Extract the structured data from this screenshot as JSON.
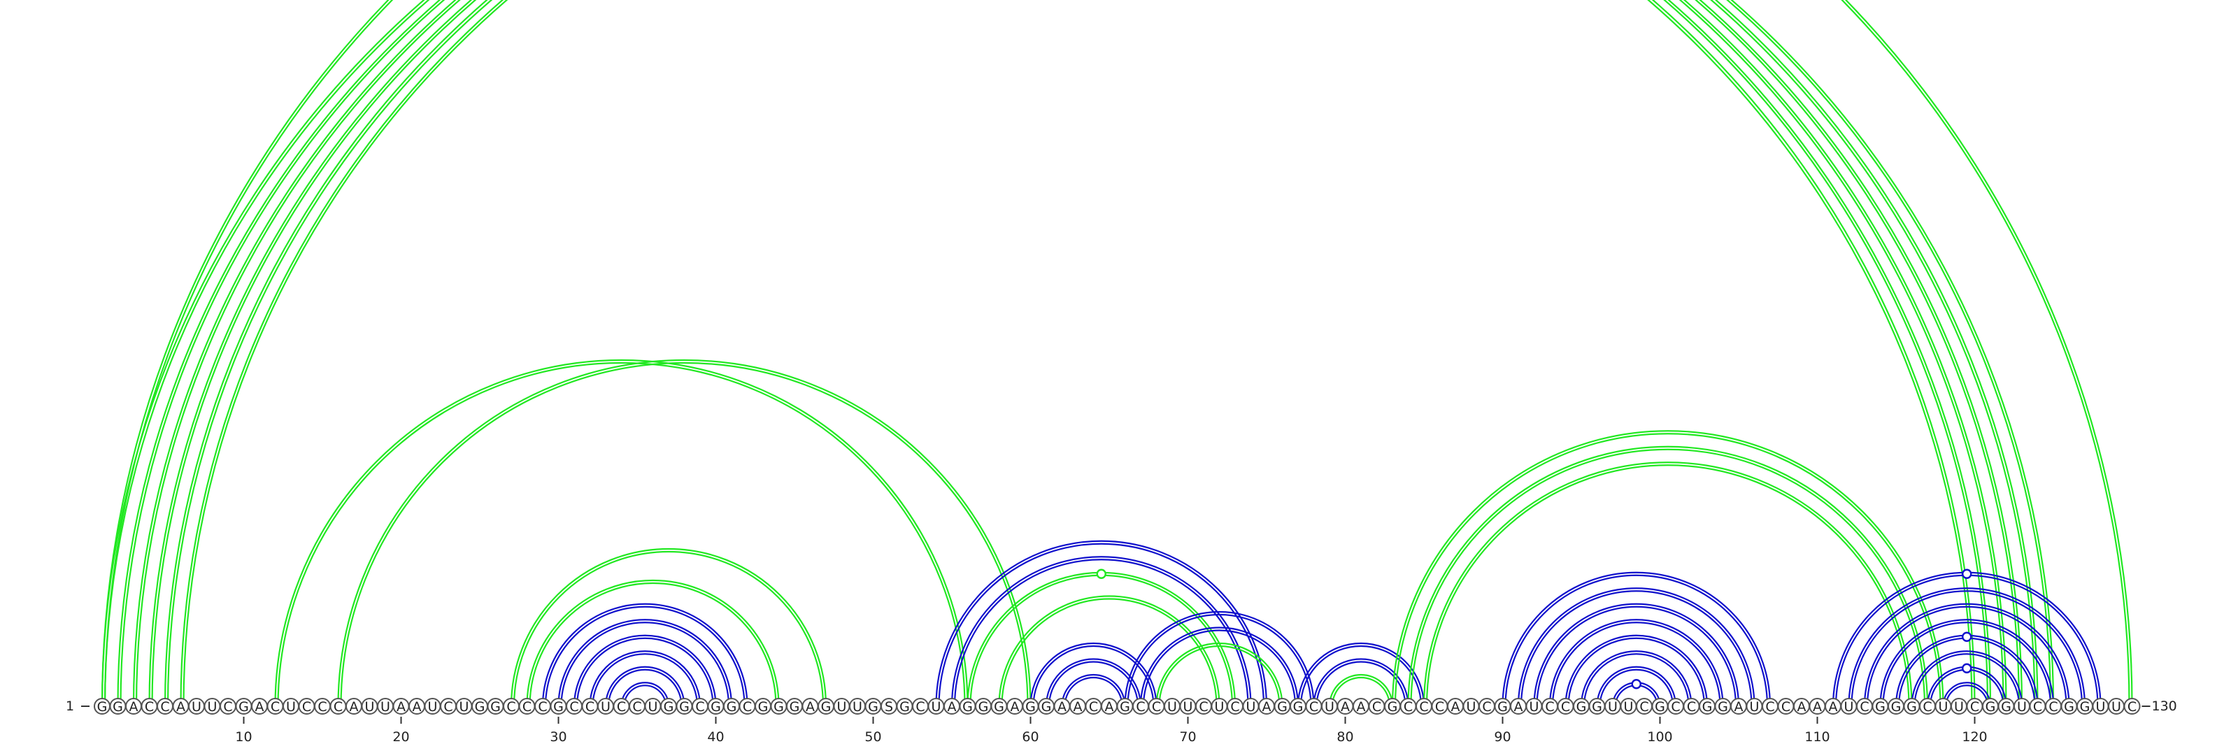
{
  "sequence": "GGACCAUUCGACUCCCAUUAAUCUGGCCCGCCUCCUGGCGGCGGGAGUUGSGCUAGGGAGGAACAGCCUUCUCUAGGCUAACGCCCAUCGAUCCGGUUCGCCGGAUCCAAAUCGGGCUUCGGUCCGGUUC",
  "start_label": "1",
  "end_label": "130",
  "ticks": [
    10,
    20,
    30,
    40,
    50,
    60,
    70,
    80,
    90,
    100,
    110,
    120
  ],
  "colors": {
    "green": "#22e822",
    "blue": "#1111cc"
  },
  "arcs": [
    {
      "i": 1,
      "j": 120,
      "color": "green",
      "mark": false
    },
    {
      "i": 2,
      "j": 121,
      "color": "green",
      "mark": false
    },
    {
      "i": 3,
      "j": 122,
      "color": "green",
      "mark": false
    },
    {
      "i": 4,
      "j": 123,
      "color": "green",
      "mark": false
    },
    {
      "i": 5,
      "j": 124,
      "color": "green",
      "mark": false
    },
    {
      "i": 6,
      "j": 125,
      "color": "green",
      "mark": false
    },
    {
      "i": 1,
      "j": 130,
      "color": "green",
      "mark": true
    },
    {
      "i": 12,
      "j": 56,
      "color": "green",
      "mark": false
    },
    {
      "i": 16,
      "j": 60,
      "color": "green",
      "mark": false
    },
    {
      "i": 27,
      "j": 47,
      "color": "green",
      "mark": false
    },
    {
      "i": 28,
      "j": 44,
      "color": "green",
      "mark": false
    },
    {
      "i": 29,
      "j": 42,
      "color": "blue",
      "mark": false
    },
    {
      "i": 30,
      "j": 41,
      "color": "blue",
      "mark": false
    },
    {
      "i": 31,
      "j": 40,
      "color": "blue",
      "mark": false
    },
    {
      "i": 32,
      "j": 39,
      "color": "blue",
      "mark": false
    },
    {
      "i": 33,
      "j": 38,
      "color": "blue",
      "mark": false
    },
    {
      "i": 34,
      "j": 37,
      "color": "blue",
      "mark": false
    },
    {
      "i": 54,
      "j": 75,
      "color": "blue",
      "mark": false
    },
    {
      "i": 55,
      "j": 74,
      "color": "blue",
      "mark": false
    },
    {
      "i": 56,
      "j": 73,
      "color": "green",
      "mark": true
    },
    {
      "i": 58,
      "j": 72,
      "color": "green",
      "mark": false
    },
    {
      "i": 60,
      "j": 68,
      "color": "blue",
      "mark": false
    },
    {
      "i": 61,
      "j": 67,
      "color": "blue",
      "mark": false
    },
    {
      "i": 62,
      "j": 66,
      "color": "blue",
      "mark": false
    },
    {
      "i": 66,
      "j": 78,
      "color": "blue",
      "mark": false
    },
    {
      "i": 67,
      "j": 77,
      "color": "blue",
      "mark": false
    },
    {
      "i": 68,
      "j": 76,
      "color": "green",
      "mark": false
    },
    {
      "i": 77,
      "j": 85,
      "color": "blue",
      "mark": false
    },
    {
      "i": 78,
      "j": 84,
      "color": "blue",
      "mark": false
    },
    {
      "i": 79,
      "j": 83,
      "color": "green",
      "mark": false
    },
    {
      "i": 83,
      "j": 118,
      "color": "green",
      "mark": false
    },
    {
      "i": 84,
      "j": 117,
      "color": "green",
      "mark": false
    },
    {
      "i": 85,
      "j": 116,
      "color": "green",
      "mark": false
    },
    {
      "i": 90,
      "j": 107,
      "color": "blue",
      "mark": false
    },
    {
      "i": 91,
      "j": 106,
      "color": "blue",
      "mark": false
    },
    {
      "i": 92,
      "j": 105,
      "color": "blue",
      "mark": false
    },
    {
      "i": 93,
      "j": 104,
      "color": "blue",
      "mark": false
    },
    {
      "i": 94,
      "j": 103,
      "color": "blue",
      "mark": false
    },
    {
      "i": 95,
      "j": 102,
      "color": "blue",
      "mark": false
    },
    {
      "i": 96,
      "j": 101,
      "color": "blue",
      "mark": false
    },
    {
      "i": 97,
      "j": 100,
      "color": "blue",
      "mark": true
    },
    {
      "i": 111,
      "j": 128,
      "color": "blue",
      "mark": true
    },
    {
      "i": 112,
      "j": 127,
      "color": "blue",
      "mark": false
    },
    {
      "i": 113,
      "j": 126,
      "color": "blue",
      "mark": false
    },
    {
      "i": 114,
      "j": 125,
      "color": "blue",
      "mark": false
    },
    {
      "i": 115,
      "j": 124,
      "color": "blue",
      "mark": true
    },
    {
      "i": 116,
      "j": 123,
      "color": "blue",
      "mark": false
    },
    {
      "i": 117,
      "j": 122,
      "color": "blue",
      "mark": true
    },
    {
      "i": 118,
      "j": 121,
      "color": "blue",
      "mark": false
    }
  ]
}
